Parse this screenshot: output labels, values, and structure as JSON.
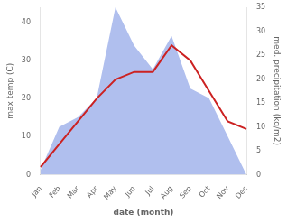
{
  "chart_data": {
    "type": "line",
    "categories": [
      "Jan",
      "Feb",
      "Mar",
      "Apr",
      "May",
      "Jun",
      "Jul",
      "Aug",
      "Sep",
      "Oct",
      "Nov",
      "Dec"
    ],
    "series": [
      {
        "type": "area",
        "color": "#b0bfee",
        "axis": "y2",
        "values": [
          1,
          10,
          12,
          16,
          35,
          27,
          22,
          29,
          18,
          16,
          8,
          0
        ]
      },
      {
        "type": "line",
        "color": "#cc2222",
        "values": [
          2,
          8,
          14,
          20,
          25,
          27,
          27,
          34,
          30,
          22,
          14,
          12
        ]
      }
    ],
    "xlabel": "date (month)",
    "ylabel": "max temp (C)",
    "y2label": "med. precipitation (kg/m2)",
    "ylim": [
      0,
      44
    ],
    "yticks": [
      0,
      10,
      20,
      30,
      40
    ],
    "y2lim": [
      0,
      35
    ],
    "y2ticks": [
      0,
      5,
      10,
      15,
      20,
      25,
      30,
      35
    ],
    "grid": false
  }
}
